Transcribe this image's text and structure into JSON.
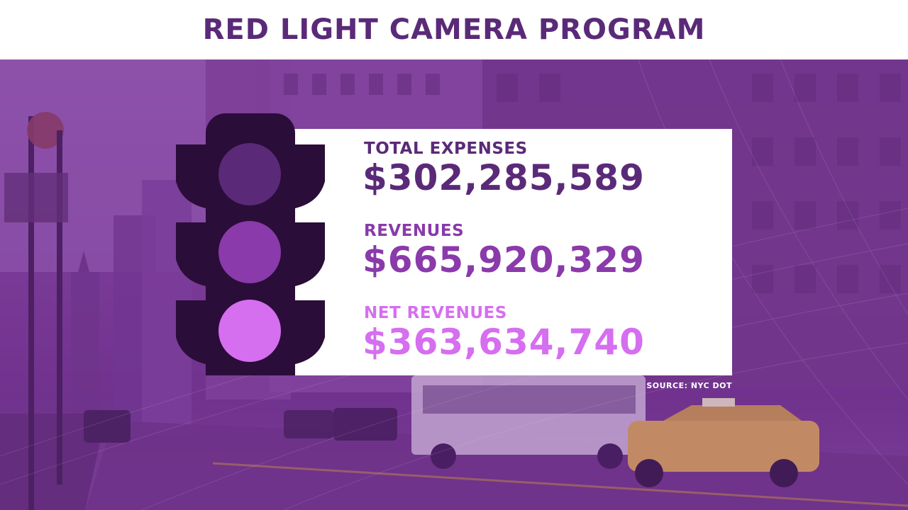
{
  "title": "RED LIGHT CAMERA PROGRAM",
  "stats": [
    {
      "label": "TOTAL EXPENSES",
      "value": "$302,285,589",
      "color": "#5a2a78"
    },
    {
      "label": "REVENUES",
      "value": "$665,920,329",
      "color": "#8a3aaa"
    },
    {
      "label": "NET REVENUES",
      "value": "$363,634,740",
      "color": "#d66ef0"
    }
  ],
  "source": "SOURCE: NYC DOT",
  "colors": {
    "title": "#5a2a78",
    "light_housing": "#2a0d38",
    "lamp_top": "#5a2a78",
    "lamp_middle": "#8a3aaa",
    "lamp_bottom": "#d66ef0",
    "background_tint": "#7a3b98"
  },
  "icons": {
    "traffic_light": "traffic-light-icon"
  }
}
